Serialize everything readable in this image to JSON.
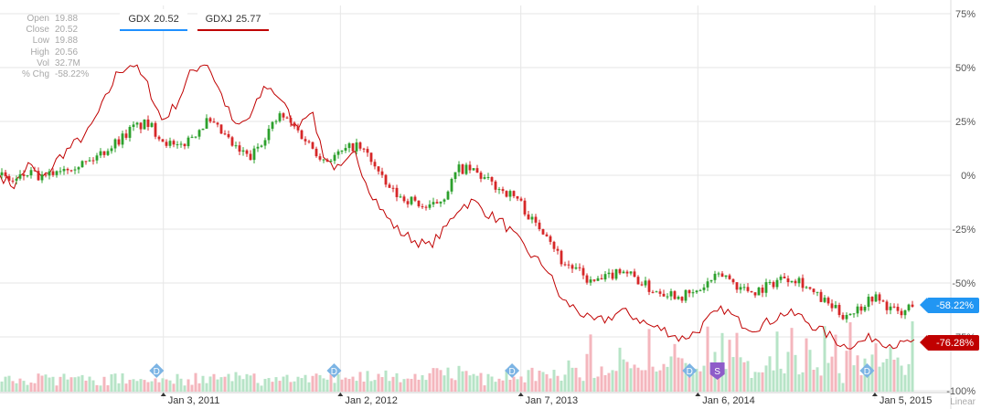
{
  "info_panel": [
    {
      "label": "Open",
      "value": "19.88"
    },
    {
      "label": "Close",
      "value": "20.52"
    },
    {
      "label": "Low",
      "value": "19.88"
    },
    {
      "label": "High",
      "value": "20.56"
    },
    {
      "label": "Vol",
      "value": "32.7M"
    },
    {
      "label": "% Chg",
      "value": "-58.22%"
    }
  ],
  "legend": [
    {
      "symbol": "GDX",
      "value": "20.52",
      "color": "#1e90ff"
    },
    {
      "symbol": "GDXJ",
      "value": "25.77",
      "color": "#c00000"
    }
  ],
  "tags": {
    "gdx": {
      "text": "-58.22%",
      "color": "#2196f3"
    },
    "gdxj": {
      "text": "-76.28%",
      "color": "#c00000"
    }
  },
  "scale_label": "Linear",
  "chart_data": {
    "type": "line",
    "y_unit": "% change",
    "y_ticks": [
      "75%",
      "50%",
      "25%",
      "0%",
      "-25%",
      "-50%",
      "-75%",
      "-100%"
    ],
    "y_tick_values": [
      75,
      50,
      25,
      0,
      -25,
      -50,
      -75,
      -100
    ],
    "ylim": [
      -100,
      75
    ],
    "x_ticks": [
      "Jan 3, 2011",
      "Jan 2, 2012",
      "Jan 7, 2013",
      "Jan 6, 2014",
      "Jan 5, 2015"
    ],
    "x_tick_dates": [
      "2011-01-03",
      "2012-01-02",
      "2013-01-07",
      "2014-01-06",
      "2015-01-05"
    ],
    "xlim": [
      "2010-02-01",
      "2015-03-27"
    ],
    "grid": true,
    "series": [
      {
        "name": "GDX",
        "style": "candlestick",
        "up_color": "#2ca02c",
        "down_color": "#d62728",
        "points": [
          [
            "2010-02-01",
            0
          ],
          [
            "2010-03-01",
            -3
          ],
          [
            "2010-04-01",
            1
          ],
          [
            "2010-05-01",
            -2
          ],
          [
            "2010-06-01",
            3
          ],
          [
            "2010-07-01",
            5
          ],
          [
            "2010-08-01",
            6
          ],
          [
            "2010-09-01",
            11
          ],
          [
            "2010-10-01",
            16
          ],
          [
            "2010-11-01",
            22
          ],
          [
            "2010-12-01",
            24
          ],
          [
            "2011-01-01",
            17
          ],
          [
            "2011-02-01",
            12
          ],
          [
            "2011-03-01",
            18
          ],
          [
            "2011-04-01",
            25
          ],
          [
            "2011-05-01",
            20
          ],
          [
            "2011-06-01",
            12
          ],
          [
            "2011-07-01",
            8
          ],
          [
            "2011-08-01",
            19
          ],
          [
            "2011-09-01",
            28
          ],
          [
            "2011-10-01",
            22
          ],
          [
            "2011-11-01",
            14
          ],
          [
            "2011-12-01",
            7
          ],
          [
            "2012-01-01",
            10
          ],
          [
            "2012-02-01",
            14
          ],
          [
            "2012-03-01",
            9
          ],
          [
            "2012-04-01",
            -4
          ],
          [
            "2012-05-01",
            -10
          ],
          [
            "2012-06-01",
            -12
          ],
          [
            "2012-07-01",
            -16
          ],
          [
            "2012-08-01",
            -10
          ],
          [
            "2012-09-01",
            3
          ],
          [
            "2012-10-01",
            2
          ],
          [
            "2012-11-01",
            -3
          ],
          [
            "2012-12-01",
            -7
          ],
          [
            "2013-01-01",
            -11
          ],
          [
            "2013-02-01",
            -22
          ],
          [
            "2013-03-01",
            -26
          ],
          [
            "2013-04-01",
            -40
          ],
          [
            "2013-05-01",
            -44
          ],
          [
            "2013-06-01",
            -50
          ],
          [
            "2013-07-01",
            -48
          ],
          [
            "2013-08-01",
            -43
          ],
          [
            "2013-09-01",
            -48
          ],
          [
            "2013-10-01",
            -53
          ],
          [
            "2013-11-01",
            -54
          ],
          [
            "2013-12-01",
            -56
          ],
          [
            "2014-01-01",
            -55
          ],
          [
            "2014-02-01",
            -49
          ],
          [
            "2014-03-01",
            -46
          ],
          [
            "2014-04-01",
            -52
          ],
          [
            "2014-05-01",
            -54
          ],
          [
            "2014-06-01",
            -51
          ],
          [
            "2014-07-01",
            -47
          ],
          [
            "2014-08-01",
            -48
          ],
          [
            "2014-09-01",
            -55
          ],
          [
            "2014-10-01",
            -60
          ],
          [
            "2014-11-01",
            -65
          ],
          [
            "2014-12-01",
            -62
          ],
          [
            "2015-01-01",
            -56
          ],
          [
            "2015-02-01",
            -61
          ],
          [
            "2015-03-01",
            -65
          ],
          [
            "2015-03-27",
            -58.22
          ]
        ]
      },
      {
        "name": "GDXJ",
        "style": "line",
        "color": "#c00000",
        "points": [
          [
            "2010-02-01",
            0
          ],
          [
            "2010-03-01",
            -5
          ],
          [
            "2010-04-01",
            5
          ],
          [
            "2010-05-01",
            -2
          ],
          [
            "2010-06-01",
            8
          ],
          [
            "2010-07-01",
            14
          ],
          [
            "2010-08-01",
            20
          ],
          [
            "2010-09-01",
            33
          ],
          [
            "2010-10-01",
            48
          ],
          [
            "2010-11-01",
            52
          ],
          [
            "2010-12-01",
            42
          ],
          [
            "2011-01-01",
            25
          ],
          [
            "2011-02-01",
            34
          ],
          [
            "2011-03-01",
            48
          ],
          [
            "2011-04-01",
            53
          ],
          [
            "2011-05-01",
            38
          ],
          [
            "2011-06-01",
            22
          ],
          [
            "2011-07-01",
            27
          ],
          [
            "2011-08-01",
            42
          ],
          [
            "2011-09-01",
            36
          ],
          [
            "2011-10-01",
            22
          ],
          [
            "2011-11-01",
            31
          ],
          [
            "2011-12-01",
            8
          ],
          [
            "2012-01-01",
            2
          ],
          [
            "2012-02-01",
            10
          ],
          [
            "2012-03-01",
            -6
          ],
          [
            "2012-04-01",
            -18
          ],
          [
            "2012-05-01",
            -26
          ],
          [
            "2012-06-01",
            -30
          ],
          [
            "2012-07-01",
            -33
          ],
          [
            "2012-08-01",
            -26
          ],
          [
            "2012-09-01",
            -15
          ],
          [
            "2012-10-01",
            -12
          ],
          [
            "2012-11-01",
            -18
          ],
          [
            "2012-12-01",
            -22
          ],
          [
            "2013-01-01",
            -30
          ],
          [
            "2013-02-01",
            -38
          ],
          [
            "2013-03-01",
            -43
          ],
          [
            "2013-04-01",
            -58
          ],
          [
            "2013-05-01",
            -62
          ],
          [
            "2013-06-01",
            -68
          ],
          [
            "2013-07-01",
            -67
          ],
          [
            "2013-08-01",
            -63
          ],
          [
            "2013-09-01",
            -66
          ],
          [
            "2013-10-01",
            -70
          ],
          [
            "2013-11-01",
            -72
          ],
          [
            "2013-12-01",
            -76
          ],
          [
            "2014-01-01",
            -73
          ],
          [
            "2014-02-01",
            -66
          ],
          [
            "2014-03-01",
            -62
          ],
          [
            "2014-04-01",
            -68
          ],
          [
            "2014-05-01",
            -71
          ],
          [
            "2014-06-01",
            -68
          ],
          [
            "2014-07-01",
            -64
          ],
          [
            "2014-08-01",
            -65
          ],
          [
            "2014-09-01",
            -70
          ],
          [
            "2014-10-01",
            -74
          ],
          [
            "2014-11-01",
            -79
          ],
          [
            "2014-12-01",
            -78
          ],
          [
            "2015-01-01",
            -75
          ],
          [
            "2015-02-01",
            -78
          ],
          [
            "2015-03-01",
            -79
          ],
          [
            "2015-03-27",
            -76.28
          ]
        ]
      }
    ],
    "events": [
      {
        "date": "2010-12-20",
        "label": "D",
        "color": "#7cb4e4"
      },
      {
        "date": "2011-12-20",
        "label": "D",
        "color": "#7cb4e4"
      },
      {
        "date": "2012-12-20",
        "label": "D",
        "color": "#7cb4e4"
      },
      {
        "date": "2013-12-20",
        "label": "D",
        "color": "#7cb4e4"
      },
      {
        "date": "2014-02-15",
        "label": "S",
        "color": "#8e5cc9"
      },
      {
        "date": "2014-12-20",
        "label": "D",
        "color": "#7cb4e4"
      }
    ]
  }
}
